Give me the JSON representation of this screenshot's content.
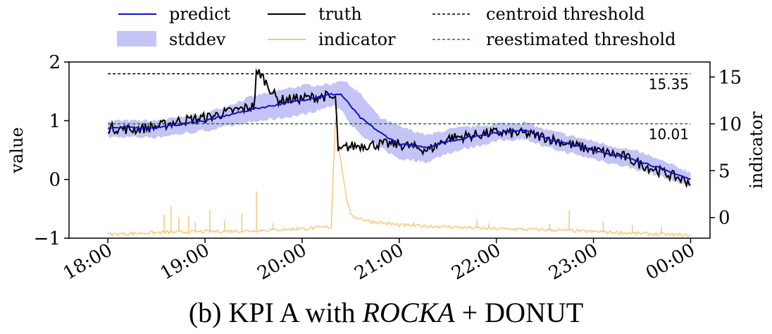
{
  "caption": {
    "prefix": "(b) KPI A with ",
    "italic": "ROCKA",
    "suffix": " + DONUT"
  },
  "chart_data": {
    "type": "line",
    "title": "",
    "xlabel": "",
    "ylabel": "value",
    "y2label": "indicator",
    "x_ticks": [
      "18:00",
      "19:00",
      "20:00",
      "21:00",
      "22:00",
      "23:00",
      "00:00"
    ],
    "xlim_hours": [
      17.6,
      24.2
    ],
    "ylim": [
      -1,
      2
    ],
    "y_ticks": [
      "2",
      "1",
      "0",
      "−1"
    ],
    "y_tick_values": [
      2,
      1,
      0,
      -1
    ],
    "y2lim": [
      -2.2,
      16.6
    ],
    "y2_ticks": [
      "15",
      "10",
      "5",
      "0"
    ],
    "y2_tick_values": [
      15,
      10,
      5,
      0
    ],
    "grid": false,
    "legend_placement": "top-center, above plot",
    "legend": [
      {
        "label": "predict",
        "kind": "line",
        "color": "#1010c8"
      },
      {
        "label": "truth",
        "kind": "line",
        "color": "#000000"
      },
      {
        "label": "centroid threshold",
        "kind": "dashed",
        "color": "#000000"
      },
      {
        "label": "stddev",
        "kind": "band",
        "color": "#c4c4f6"
      },
      {
        "label": "indicator",
        "kind": "line",
        "color": "#f5c77a"
      },
      {
        "label": "reestimated threshold",
        "kind": "dashed",
        "color": "#1a7a1a"
      }
    ],
    "thresholds": [
      {
        "name": "centroid threshold",
        "value": 15.35,
        "label": "15.35",
        "axis": "indicator"
      },
      {
        "name": "reestimated threshold",
        "value": 10.01,
        "label": "10.01",
        "axis": "indicator"
      }
    ],
    "series": [
      {
        "name": "predict",
        "axis": "value",
        "x_hours": [
          18.0,
          18.5,
          19.0,
          19.5,
          20.0,
          20.3,
          20.4,
          20.5,
          20.6,
          20.8,
          21.0,
          21.3,
          21.5,
          22.0,
          22.3,
          22.5,
          23.0,
          23.5,
          24.0
        ],
        "y": [
          0.88,
          0.88,
          1.0,
          1.2,
          1.35,
          1.45,
          1.45,
          1.25,
          1.05,
          0.8,
          0.6,
          0.55,
          0.65,
          0.8,
          0.85,
          0.7,
          0.5,
          0.3,
          0.0
        ]
      },
      {
        "name": "stddev",
        "axis": "value",
        "x_hours": [
          18.0,
          18.5,
          19.0,
          19.5,
          20.0,
          20.3,
          20.4,
          20.5,
          20.6,
          20.8,
          21.0,
          21.3,
          21.5,
          22.0,
          22.3,
          22.5,
          23.0,
          23.5,
          24.0
        ],
        "upper": [
          1.0,
          1.0,
          1.12,
          1.42,
          1.6,
          1.62,
          1.7,
          1.6,
          1.45,
          1.05,
          0.9,
          0.75,
          0.85,
          0.95,
          0.97,
          0.85,
          0.65,
          0.45,
          0.12
        ],
        "lower": [
          0.72,
          0.72,
          0.83,
          0.98,
          1.1,
          1.25,
          1.2,
          0.95,
          0.75,
          0.55,
          0.35,
          0.3,
          0.45,
          0.65,
          0.7,
          0.55,
          0.35,
          0.15,
          -0.12
        ]
      },
      {
        "name": "truth",
        "axis": "value",
        "x_hours": [
          18.0,
          18.25,
          18.5,
          18.75,
          19.0,
          19.25,
          19.5,
          19.55,
          19.75,
          20.0,
          20.25,
          20.35,
          20.37,
          20.45,
          20.6,
          20.8,
          21.0,
          21.3,
          21.5,
          21.75,
          22.0,
          22.3,
          22.5,
          22.75,
          23.0,
          23.3,
          23.5,
          23.75,
          24.0
        ],
        "y": [
          0.88,
          0.85,
          0.9,
          1.0,
          1.05,
          1.15,
          1.25,
          1.85,
          1.35,
          1.38,
          1.42,
          1.35,
          0.45,
          0.55,
          0.58,
          0.6,
          0.6,
          0.5,
          0.7,
          0.75,
          0.8,
          0.78,
          0.72,
          0.6,
          0.5,
          0.4,
          0.25,
          0.1,
          -0.05
        ]
      },
      {
        "name": "indicator",
        "axis": "indicator",
        "x_hours": [
          18.0,
          18.5,
          19.0,
          19.5,
          20.0,
          20.3,
          20.35,
          20.37,
          20.4,
          20.45,
          20.5,
          20.7,
          21.0,
          21.5,
          22.0,
          22.5,
          23.0,
          23.5,
          24.0
        ],
        "y": [
          -1.8,
          -1.6,
          -1.5,
          -1.4,
          -1.2,
          -1.0,
          12.5,
          8.0,
          6.0,
          2.5,
          0.2,
          -0.4,
          -0.8,
          -1.0,
          -1.2,
          -1.3,
          -1.5,
          -1.7,
          -1.9
        ],
        "spikes": [
          {
            "x_hours": 18.58,
            "y": 0.3
          },
          {
            "x_hours": 18.65,
            "y": 1.2
          },
          {
            "x_hours": 18.73,
            "y": 0.0
          },
          {
            "x_hours": 18.83,
            "y": 0.2
          },
          {
            "x_hours": 18.9,
            "y": -0.5
          },
          {
            "x_hours": 19.05,
            "y": 0.8
          },
          {
            "x_hours": 19.2,
            "y": -0.3
          },
          {
            "x_hours": 19.38,
            "y": 0.4
          },
          {
            "x_hours": 19.53,
            "y": 2.8
          },
          {
            "x_hours": 19.7,
            "y": -0.6
          },
          {
            "x_hours": 19.95,
            "y": -0.9
          },
          {
            "x_hours": 21.15,
            "y": -0.5
          },
          {
            "x_hours": 21.4,
            "y": -0.8
          },
          {
            "x_hours": 21.8,
            "y": -0.2
          },
          {
            "x_hours": 21.92,
            "y": -0.6
          },
          {
            "x_hours": 22.55,
            "y": -0.7
          },
          {
            "x_hours": 22.75,
            "y": 0.8
          },
          {
            "x_hours": 23.1,
            "y": -0.4
          },
          {
            "x_hours": 23.4,
            "y": -0.8
          },
          {
            "x_hours": 23.7,
            "y": -0.9
          }
        ]
      }
    ]
  }
}
